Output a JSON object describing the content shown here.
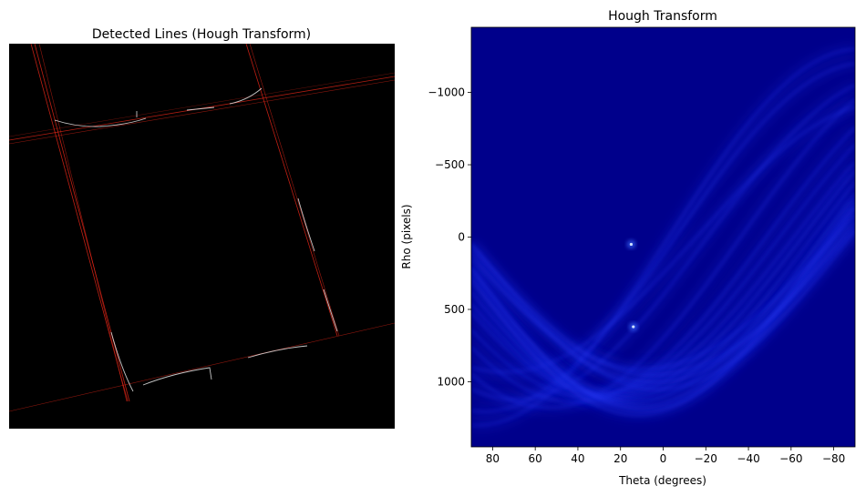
{
  "left_panel": {
    "title": "Detected Lines (Hough Transform)",
    "background_color": "#000000",
    "line_color": "#ff2a1a",
    "edge_color": "#e8e8e8"
  },
  "chart_data": {
    "type": "heatmap",
    "title": "Hough Transform",
    "xlabel": "Theta (degrees)",
    "ylabel": "Rho (pixels)",
    "xlim": [
      90,
      -90
    ],
    "ylim": [
      1450,
      -1450
    ],
    "xticks": [
      80,
      60,
      40,
      20,
      0,
      -20,
      -40,
      -60,
      -80
    ],
    "yticks": [
      -1000,
      -500,
      0,
      500,
      1000
    ],
    "colormap": "jet-like, background #00008b",
    "peaks": [
      {
        "theta": 15,
        "rho": 50
      },
      {
        "theta": 14,
        "rho": 620
      }
    ]
  }
}
